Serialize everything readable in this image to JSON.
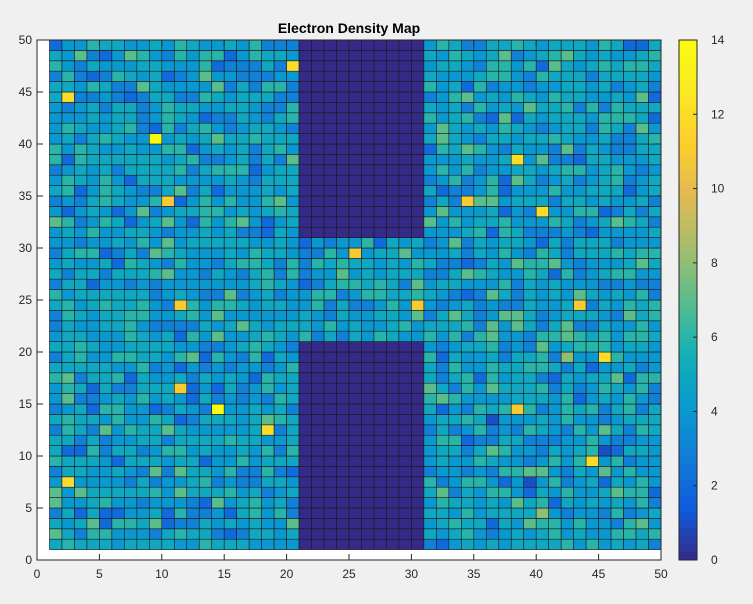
{
  "figure": {
    "background": "#f0f0f0"
  },
  "chart_data": {
    "type": "heatmap",
    "title": "Electron Density Map",
    "xlabel": "",
    "ylabel": "",
    "xlim": [
      0,
      50
    ],
    "ylim": [
      0,
      50
    ],
    "x_ticks": [
      0,
      5,
      10,
      15,
      20,
      25,
      30,
      35,
      40,
      45,
      50
    ],
    "y_ticks": [
      0,
      5,
      10,
      15,
      20,
      25,
      30,
      35,
      40,
      45,
      50
    ],
    "grid_cells": {
      "nx": 49,
      "ny": 49,
      "cell_size": 1,
      "first_cell_left": 1,
      "first_cell_bottom": 1
    },
    "colormap": "parula",
    "clim": [
      0,
      14
    ],
    "colorbar_ticks": [
      0,
      2,
      4,
      6,
      8,
      10,
      12,
      14
    ],
    "colorbar_placement": "right",
    "depleted_regions": [
      {
        "x_range": [
          21,
          31
        ],
        "y_range": [
          31,
          50
        ],
        "value": 0
      },
      {
        "x_range": [
          21,
          31
        ],
        "y_range": [
          1,
          21
        ],
        "value": 0
      }
    ],
    "background_value_range": [
      1,
      8
    ],
    "highlight_cells": [
      {
        "x": 9.5,
        "y": 40.5,
        "value": 14
      },
      {
        "x": 14.5,
        "y": 14.5,
        "value": 14
      },
      {
        "x": 2.5,
        "y": 44.5,
        "value": 12
      },
      {
        "x": 20.5,
        "y": 47.5,
        "value": 12
      },
      {
        "x": 10.5,
        "y": 34.5,
        "value": 11
      },
      {
        "x": 11.5,
        "y": 24.5,
        "value": 11
      },
      {
        "x": 11.5,
        "y": 16.5,
        "value": 11
      },
      {
        "x": 18.5,
        "y": 12.5,
        "value": 12
      },
      {
        "x": 2.5,
        "y": 7.5,
        "value": 12
      },
      {
        "x": 40.5,
        "y": 33.5,
        "value": 12
      },
      {
        "x": 38.5,
        "y": 38.5,
        "value": 12
      },
      {
        "x": 45.5,
        "y": 19.5,
        "value": 12
      },
      {
        "x": 44.5,
        "y": 9.5,
        "value": 12
      },
      {
        "x": 34.5,
        "y": 34.5,
        "value": 11
      },
      {
        "x": 38.5,
        "y": 14.5,
        "value": 11
      },
      {
        "x": 43.5,
        "y": 24.5,
        "value": 11
      },
      {
        "x": 25.5,
        "y": 29.5,
        "value": 11
      },
      {
        "x": 30.5,
        "y": 24.5,
        "value": 11
      }
    ]
  }
}
